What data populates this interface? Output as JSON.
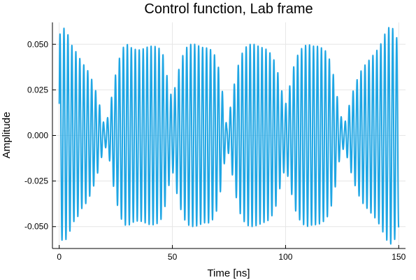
{
  "chart_data": {
    "type": "line",
    "title": "Control function, Lab frame",
    "xlabel": "Time [ns]",
    "ylabel": "Amplitude",
    "xlim": [
      -3,
      153
    ],
    "ylim": [
      -0.062,
      0.062
    ],
    "x_ticks": [
      0,
      50,
      100,
      150
    ],
    "x_tick_labels": [
      "0",
      "50",
      "100",
      "150"
    ],
    "y_ticks": [
      0.05,
      0.025,
      0.0,
      -0.025,
      -0.05
    ],
    "y_tick_labels": [
      "0.050",
      "0.025",
      "0.000",
      "-0.025",
      "-0.050"
    ],
    "grid": true,
    "legend": "none",
    "series_color": "#1fa6e4",
    "series": [
      {
        "x_start": 0,
        "x_end": 150,
        "carrier_period_ns": 1.75,
        "envelope_x": [
          0,
          2,
          4,
          6,
          8,
          10,
          12,
          14,
          16,
          18,
          20,
          22,
          24,
          26,
          28,
          30,
          32,
          34,
          36,
          38,
          40,
          42,
          44,
          46,
          48,
          50,
          52,
          54,
          56,
          58,
          60,
          62,
          64,
          66,
          68,
          70,
          72,
          74,
          76,
          78,
          80,
          82,
          84,
          86,
          88,
          90,
          92,
          94,
          96,
          98,
          100,
          102,
          104,
          106,
          108,
          110,
          112,
          114,
          116,
          118,
          120,
          122,
          124,
          126,
          128,
          130,
          132,
          134,
          136,
          138,
          140,
          142,
          144,
          146,
          148,
          150
        ],
        "envelope_y": [
          0.055,
          0.059,
          0.055,
          0.048,
          0.045,
          0.04,
          0.037,
          0.032,
          0.025,
          0.016,
          0.005,
          0.012,
          0.028,
          0.04,
          0.048,
          0.05,
          0.048,
          0.047,
          0.047,
          0.048,
          0.049,
          0.049,
          0.048,
          0.044,
          0.03,
          0.019,
          0.032,
          0.042,
          0.048,
          0.05,
          0.05,
          0.049,
          0.048,
          0.048,
          0.046,
          0.04,
          0.025,
          0.005,
          0.018,
          0.033,
          0.043,
          0.048,
          0.05,
          0.05,
          0.049,
          0.048,
          0.047,
          0.044,
          0.038,
          0.026,
          0.017,
          0.028,
          0.04,
          0.046,
          0.049,
          0.05,
          0.049,
          0.049,
          0.048,
          0.046,
          0.04,
          0.028,
          0.012,
          0.006,
          0.016,
          0.025,
          0.032,
          0.037,
          0.04,
          0.043,
          0.046,
          0.05,
          0.056,
          0.06,
          0.058,
          0.05
        ]
      }
    ]
  }
}
